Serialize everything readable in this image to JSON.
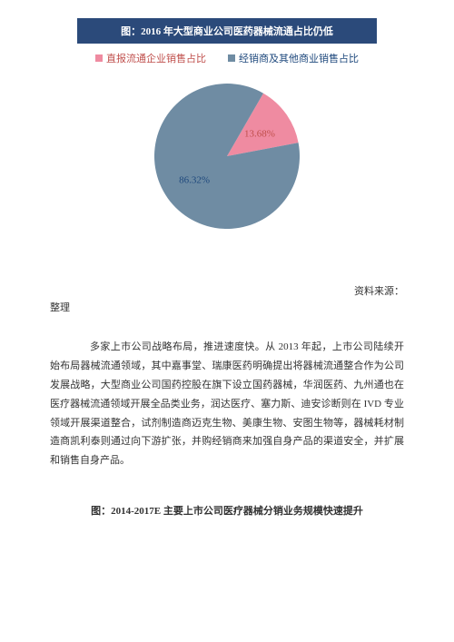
{
  "chart": {
    "type": "pie",
    "title": "图：2016 年大型商业公司医药器械流通占比仍低",
    "title_bg": "#2b4a7a",
    "title_color": "#ffffff",
    "title_fontsize": 11,
    "legend": [
      {
        "label": "直报流通企业销售占比",
        "color": "#ef8ba1"
      },
      {
        "label": "经销商及其他商业销售占比",
        "color": "#6f8ca3"
      }
    ],
    "slices": [
      {
        "name": "direct",
        "value": 13.68,
        "label": "13.68%",
        "color": "#ef8ba1",
        "label_color": "#c0504d"
      },
      {
        "name": "dealer",
        "value": 86.32,
        "label": "86.32%",
        "color": "#6f8ca3",
        "label_color": "#1f497d"
      }
    ],
    "background_color": "#ffffff",
    "radius": 80
  },
  "source": {
    "prefix": "资料来源：",
    "body": "整理"
  },
  "body_para": "多家上市公司战略布局，推进速度快。从 2013 年起，上市公司陆续开始布局器械流通领域，其中嘉事堂、瑞康医药明确提出将器械流通整合作为公司发展战略，大型商业公司国药控股在旗下设立国药器械，华润医药、九州通也在医疗器械流通领域开展全品类业务，润达医疗、塞力斯、迪安诊断则在 IVD 专业领域开展渠道整合，试剂制造商迈克生物、美康生物、安图生物等，器械耗材制造商凯利泰则通过向下游扩张，并购经销商来加强自身产品的渠道安全，并扩展和销售自身产品。",
  "figure_caption": "图：2014-2017E 主要上市公司医疗器械分销业务规模快速提升"
}
